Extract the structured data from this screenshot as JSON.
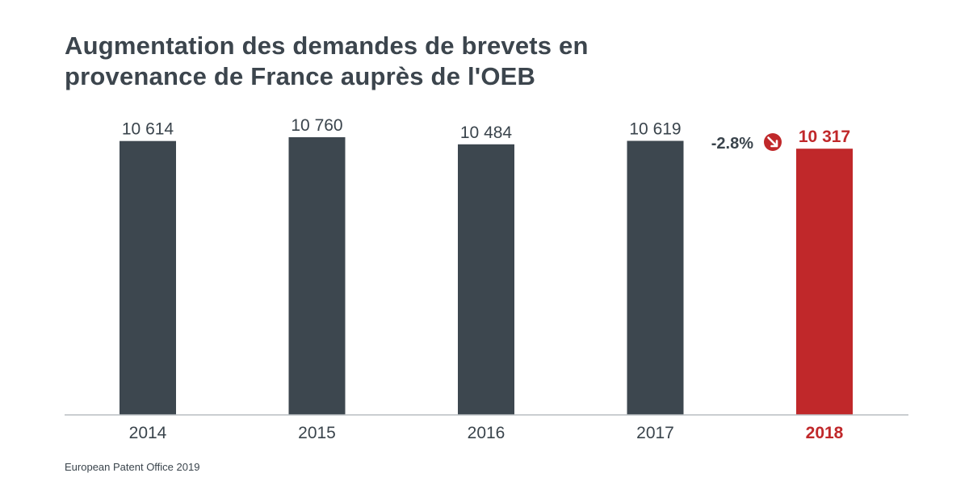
{
  "colors": {
    "bar": "#3d474f",
    "highlight": "#c0282a",
    "axis": "#b9bec2",
    "text": "#3a444c"
  },
  "change": {
    "label": "-2.8%",
    "icon": "arrow-down-right-icon"
  },
  "source": "European Patent Office 2019",
  "chart_data": {
    "type": "bar",
    "title_lines": [
      "Augmentation des demandes de brevets en",
      "provenance de France auprès de l'OEB"
    ],
    "categories": [
      "2014",
      "2015",
      "2016",
      "2017",
      "2018"
    ],
    "values": [
      10614,
      10760,
      10484,
      10619,
      10317
    ],
    "value_labels": [
      "10 614",
      "10 760",
      "10 484",
      "10 619",
      "10 317"
    ],
    "highlight_index": 4,
    "ylim": [
      0,
      10760
    ],
    "xlabel": "",
    "ylabel": "",
    "grid": false,
    "legend": "none"
  }
}
